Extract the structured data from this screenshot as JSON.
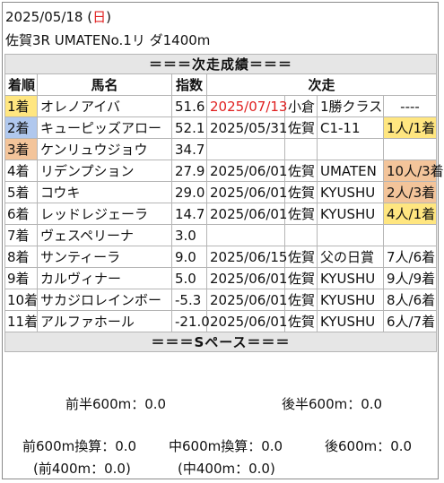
{
  "header": {
    "date_prefix": "2025/05/18 (",
    "weekday": "日",
    "date_suffix": ")",
    "race": "佐賀3R UMATENo.1リ ダ1400m"
  },
  "sections": {
    "next_results": "＝＝＝次走成績＝＝＝",
    "s_pace": "＝＝＝Sペース＝＝＝"
  },
  "columns": {
    "rank": "着順",
    "horse": "馬名",
    "index": "指数",
    "next": "次走"
  },
  "rows": [
    {
      "rank": "1着",
      "horse": "オレノアイバ",
      "index": "51.6",
      "date": "2025/07/13",
      "track": "小倉",
      "race": "1勝クラス",
      "result": "----"
    },
    {
      "rank": "2着",
      "horse": "キューピッズアロー",
      "index": "52.1",
      "date": "2025/05/31",
      "track": "佐賀",
      "race": "C1-11",
      "result": "1人/1着"
    },
    {
      "rank": "3着",
      "horse": "ケンリュウジョウ",
      "index": "34.7",
      "date": "",
      "track": "",
      "race": "",
      "result": ""
    },
    {
      "rank": "4着",
      "horse": "リデンプション",
      "index": "27.9",
      "date": "2025/06/01",
      "track": "佐賀",
      "race": "UMATEN",
      "result": "10人/3着"
    },
    {
      "rank": "5着",
      "horse": "コウキ",
      "index": "29.0",
      "date": "2025/06/01",
      "track": "佐賀",
      "race": "KYUSHU",
      "result": "2人/3着"
    },
    {
      "rank": "6着",
      "horse": "レッドレジェーラ",
      "index": "14.7",
      "date": "2025/06/01",
      "track": "佐賀",
      "race": "KYUSHU",
      "result": "4人/1着"
    },
    {
      "rank": "7着",
      "horse": "ヴェスペリーナ",
      "index": "3.0",
      "date": "",
      "track": "",
      "race": "",
      "result": ""
    },
    {
      "rank": "8着",
      "horse": "サンティーラ",
      "index": "9.0",
      "date": "2025/06/15",
      "track": "佐賀",
      "race": "父の日賞",
      "result": "7人/6着"
    },
    {
      "rank": "9着",
      "horse": "カルヴィナー",
      "index": "5.0",
      "date": "2025/06/01",
      "track": "佐賀",
      "race": "KYUSHU",
      "result": "9人/9着"
    },
    {
      "rank": "10着",
      "horse": "サカジロレインボー",
      "index": "-5.3",
      "date": "2025/06/01",
      "track": "佐賀",
      "race": "KYUSHU",
      "result": "8人/6着"
    },
    {
      "rank": "11着",
      "horse": "アルファホール",
      "index": "-21.0",
      "date": "2025/06/01",
      "track": "佐賀",
      "race": "KYUSHU",
      "result": "6人/7着"
    }
  ],
  "pace": {
    "first_half": "前半600m：0.0",
    "second_half": "後半600m：0.0",
    "front600": "前600m換算：0.0",
    "mid600": "中600m換算：0.0",
    "back600": "後600m：0.0",
    "front400": "(前400m：0.0)",
    "mid400": "(中400m：0.0)"
  },
  "colors": {
    "yellow": "#ffe680",
    "blue": "#b0c8ee",
    "orange": "#f3c49a",
    "red": "#e02020"
  }
}
